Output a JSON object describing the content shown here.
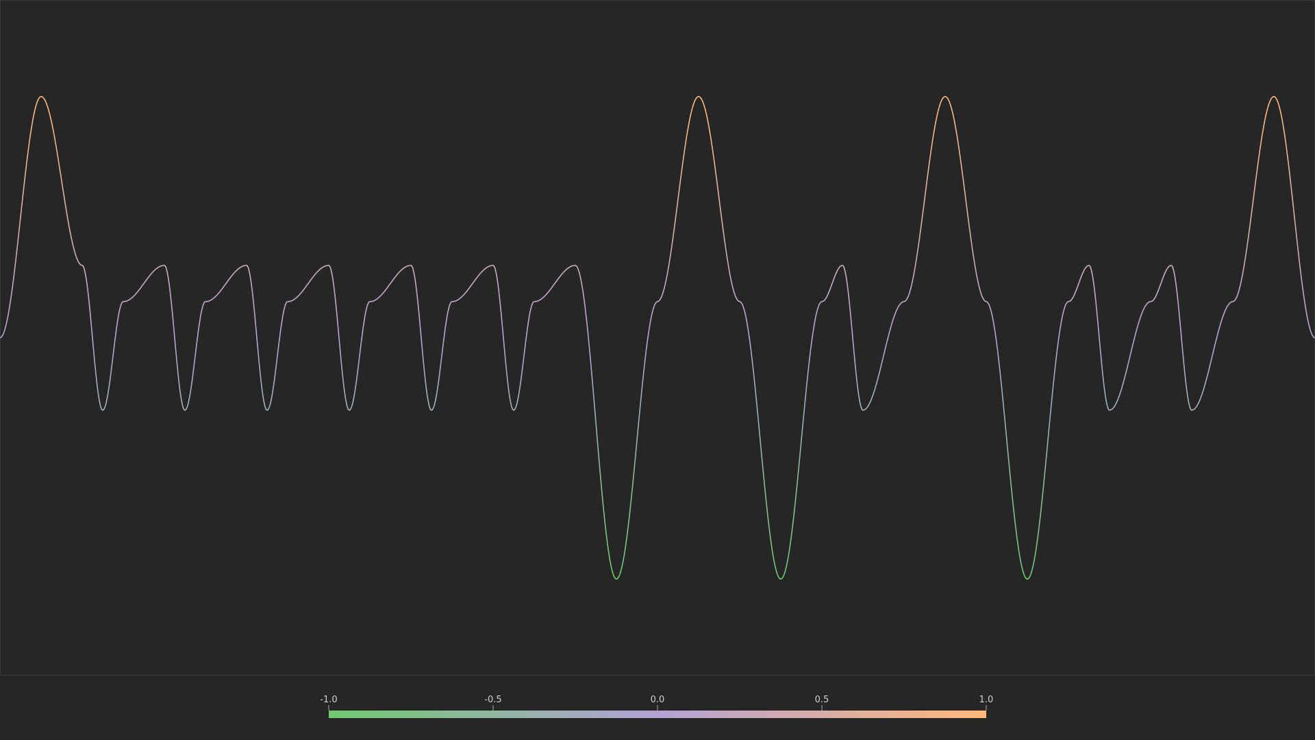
{
  "colors": {
    "background": "#262626",
    "plot_border": "#3a3a3a",
    "tick_mark": "#aaaaaa",
    "tick_text": "#d2d2d2",
    "low": "#6fca6f",
    "mid": "#b3a2d6",
    "high": "#ffb877"
  },
  "chart_data": {
    "type": "line",
    "title": "",
    "xlabel": "",
    "ylabel": "",
    "xlim": [
      0,
      16
    ],
    "ylim": [
      -1.4,
      1.4
    ],
    "grid": false,
    "series": [
      {
        "x": [
          0.0,
          0.5,
          1.0,
          1.25,
          1.5,
          2.0,
          2.25,
          2.5,
          3.0,
          3.25,
          3.5,
          4.0,
          4.25,
          4.5,
          5.0,
          5.25,
          5.5,
          6.0,
          6.25,
          6.5,
          7.0,
          7.5,
          8.0,
          8.5,
          9.0,
          9.5,
          10.0,
          10.25,
          10.5,
          11.0,
          11.5,
          12.0,
          12.5,
          13.0,
          13.25,
          13.5,
          14.0,
          14.25,
          14.5,
          15.0,
          15.5,
          16.0
        ],
        "values": [
          0.0,
          1.0,
          0.3,
          -0.3,
          0.15,
          0.3,
          -0.3,
          0.15,
          0.3,
          -0.3,
          0.15,
          0.3,
          -0.3,
          0.15,
          0.3,
          -0.3,
          0.15,
          0.3,
          -0.3,
          0.15,
          0.3,
          -1.0,
          0.15,
          1.0,
          0.15,
          -1.0,
          0.15,
          0.3,
          -0.3,
          0.15,
          1.0,
          0.15,
          -1.0,
          0.15,
          0.3,
          -0.3,
          0.15,
          0.3,
          -0.3,
          0.15,
          1.0,
          0.0
        ]
      }
    ],
    "colorbar": {
      "range": [
        -1.0,
        1.0
      ],
      "ticks": [
        "-1.0",
        "-0.5",
        "0.0",
        "0.5",
        "1.0"
      ]
    }
  }
}
